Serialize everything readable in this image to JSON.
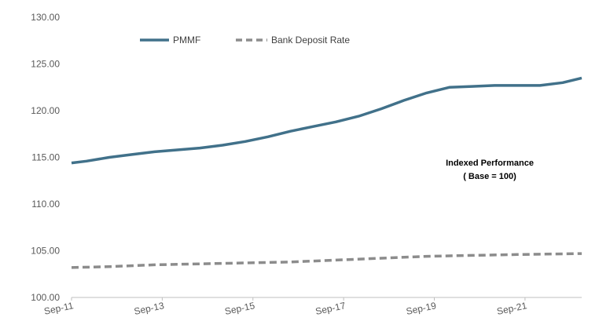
{
  "chart_data": {
    "type": "line",
    "title": "",
    "xlabel": "",
    "ylabel": "",
    "ylim": [
      100,
      130
    ],
    "yticks": [
      "100.00",
      "105.00",
      "110.00",
      "115.00",
      "120.00",
      "125.00",
      "130.00"
    ],
    "xlim": [
      2011.67,
      2022.92
    ],
    "xticks": [
      {
        "label": "Sep-11",
        "value": 2011.67
      },
      {
        "label": "Sep-13",
        "value": 2013.67
      },
      {
        "label": "Sep-15",
        "value": 2015.67
      },
      {
        "label": "Sep-17",
        "value": 2017.67
      },
      {
        "label": "Sep-19",
        "value": 2019.67
      },
      {
        "label": "Sep-21",
        "value": 2021.67
      }
    ],
    "grid": false,
    "legend_position": "top-left",
    "annotation": [
      "Indexed Performance",
      "( Base = 100)"
    ],
    "series": [
      {
        "name": "PMMF",
        "color": "#41718a",
        "style": "solid",
        "x": [
          2011.67,
          2012.0,
          2012.5,
          2013.0,
          2013.5,
          2014.0,
          2014.5,
          2015.0,
          2015.5,
          2016.0,
          2016.5,
          2017.0,
          2017.5,
          2018.0,
          2018.5,
          2019.0,
          2019.5,
          2020.0,
          2020.5,
          2021.0,
          2021.5,
          2022.0,
          2022.5,
          2022.92
        ],
        "values": [
          114.4,
          114.6,
          115.0,
          115.3,
          115.6,
          115.8,
          116.0,
          116.3,
          116.7,
          117.2,
          117.8,
          118.3,
          118.8,
          119.4,
          120.2,
          121.1,
          121.9,
          122.5,
          122.6,
          122.7,
          122.7,
          122.7,
          123.0,
          123.5
        ]
      },
      {
        "name": "Bank Deposit Rate",
        "color": "#8c8c8c",
        "style": "dashed",
        "x": [
          2011.67,
          2012.5,
          2013.5,
          2014.5,
          2015.5,
          2016.5,
          2017.5,
          2018.5,
          2019.5,
          2020.5,
          2021.5,
          2022.92
        ],
        "values": [
          103.2,
          103.3,
          103.5,
          103.6,
          103.7,
          103.8,
          104.0,
          104.2,
          104.4,
          104.5,
          104.6,
          104.7
        ]
      }
    ]
  }
}
